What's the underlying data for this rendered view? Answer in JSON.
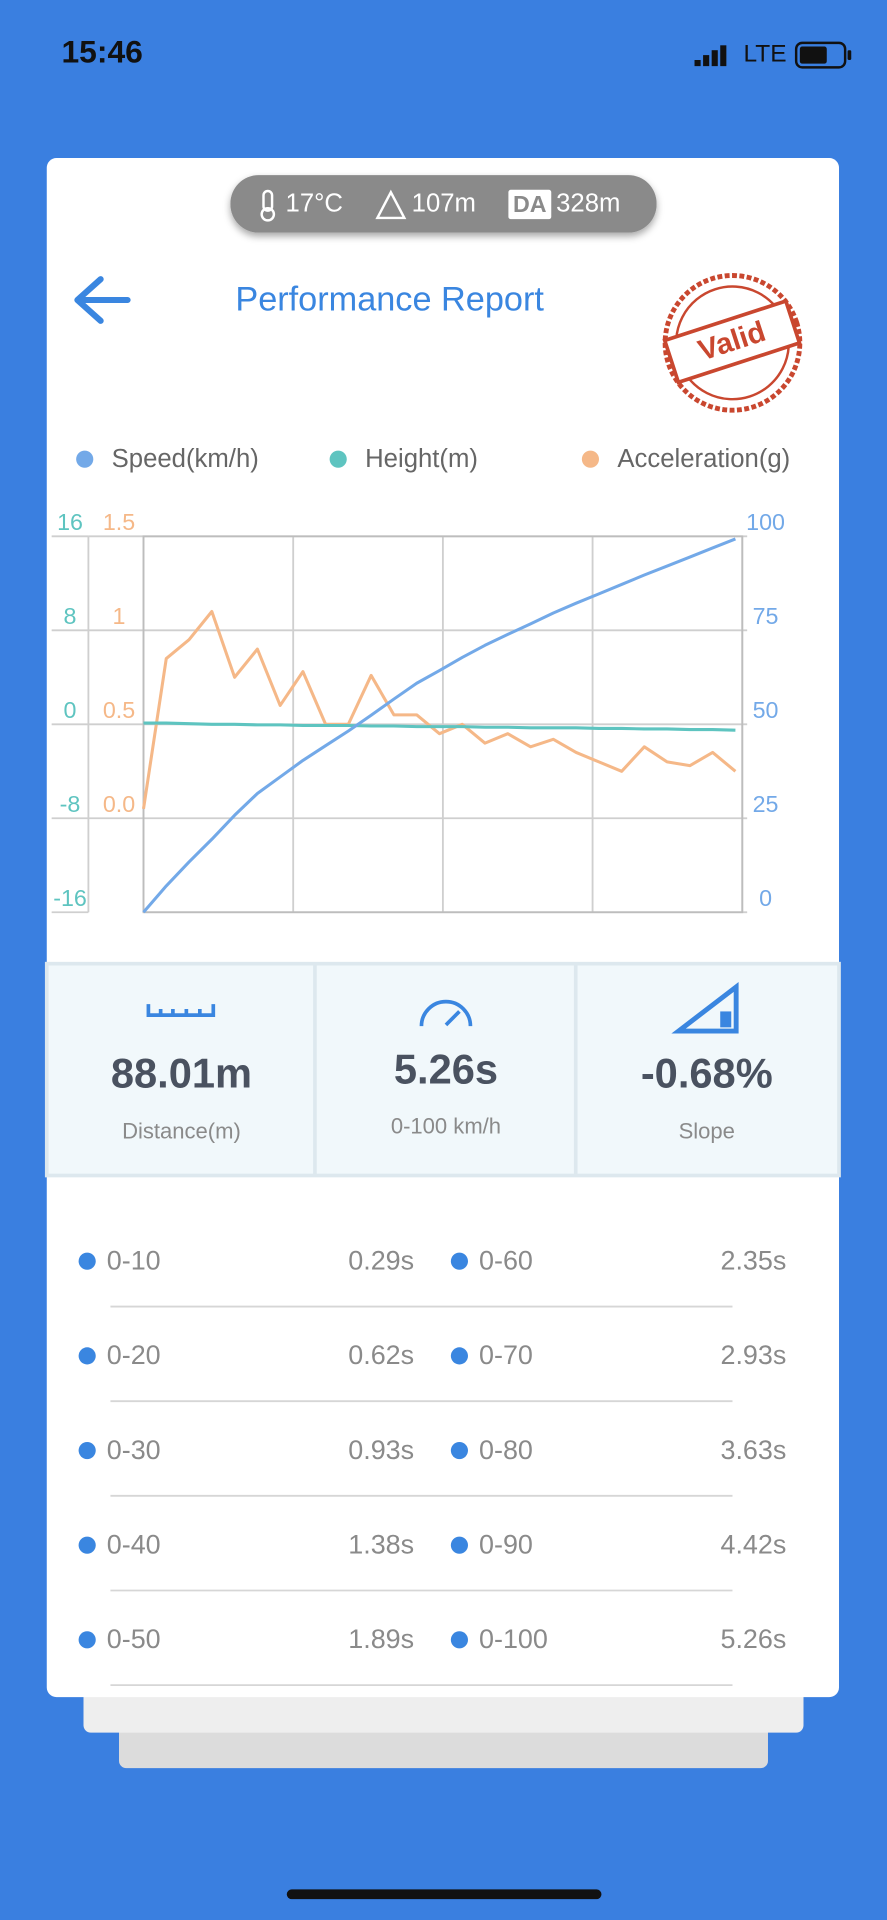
{
  "status_bar": {
    "time": "15:46",
    "network": "LTE"
  },
  "conditions": {
    "temperature": "17°C",
    "altitude": "107m",
    "da_badge": "DA",
    "density_altitude": "328m"
  },
  "header": {
    "title": "Performance Report",
    "stamp": "Valid"
  },
  "chart_data": {
    "type": "line",
    "grid": true,
    "x": [
      0,
      0.2,
      0.4,
      0.6,
      0.8,
      1.0,
      1.2,
      1.4,
      1.6,
      1.8,
      2.0,
      2.2,
      2.4,
      2.6,
      2.8,
      3.0,
      3.2,
      3.4,
      3.6,
      3.8,
      4.0,
      4.2,
      4.4,
      4.6,
      4.8,
      5.0,
      5.2
    ],
    "xlim": [
      0,
      5.26
    ],
    "ylim": [
      -0.5,
      1.5
    ],
    "yticks": [
      {
        "value": 0,
        "label": "0.0"
      },
      0.5,
      1,
      1.5
    ],
    "y2lim": [
      0,
      100
    ],
    "y2ticks": [
      0,
      25,
      50,
      75,
      100
    ],
    "y3lim": [
      -16,
      16
    ],
    "y3ticks": [
      -16,
      -8,
      0,
      8,
      16
    ],
    "series": [
      {
        "name": "Speed(km/h)",
        "color": "#73a9e8",
        "axis": "y2",
        "values": [
          0,
          7,
          13.4,
          19.4,
          25.8,
          31.6,
          36,
          40.4,
          44.3,
          48.2,
          52.4,
          56.7,
          60.9,
          64.3,
          67.8,
          71,
          73.9,
          76.7,
          79.6,
          82.2,
          84.7,
          87.2,
          89.7,
          92.1,
          94.5,
          96.9,
          99.3
        ]
      },
      {
        "name": "Height(m)",
        "color": "#5ec4c0",
        "axis": "y3",
        "values": [
          0.1,
          0.1,
          0.05,
          0,
          0,
          -0.05,
          -0.05,
          -0.1,
          -0.1,
          -0.1,
          -0.15,
          -0.15,
          -0.2,
          -0.2,
          -0.2,
          -0.25,
          -0.25,
          -0.3,
          -0.3,
          -0.3,
          -0.35,
          -0.35,
          -0.4,
          -0.4,
          -0.45,
          -0.45,
          -0.5
        ]
      },
      {
        "name": "Acceleration(g)",
        "color": "#f5b888",
        "values": [
          0.05,
          0.85,
          0.95,
          1.1,
          0.75,
          0.9,
          0.6,
          0.78,
          0.5,
          0.5,
          0.76,
          0.55,
          0.55,
          0.45,
          0.5,
          0.4,
          0.45,
          0.38,
          0.42,
          0.35,
          0.3,
          0.25,
          0.38,
          0.3,
          0.28,
          0.35,
          0.25
        ]
      }
    ]
  },
  "stats": [
    {
      "value": "88.01m",
      "label": "Distance(m)"
    },
    {
      "value": "5.26s",
      "label": "0-100 km/h"
    },
    {
      "value": "-0.68%",
      "label": "Slope"
    }
  ],
  "splits": [
    {
      "range": "0-10",
      "time": "0.29s"
    },
    {
      "range": "0-20",
      "time": "0.62s"
    },
    {
      "range": "0-30",
      "time": "0.93s"
    },
    {
      "range": "0-40",
      "time": "1.38s"
    },
    {
      "range": "0-50",
      "time": "1.89s"
    },
    {
      "range": "0-60",
      "time": "2.35s"
    },
    {
      "range": "0-70",
      "time": "2.93s"
    },
    {
      "range": "0-80",
      "time": "3.63s"
    },
    {
      "range": "0-90",
      "time": "4.42s"
    },
    {
      "range": "0-100",
      "time": "5.26s"
    }
  ]
}
